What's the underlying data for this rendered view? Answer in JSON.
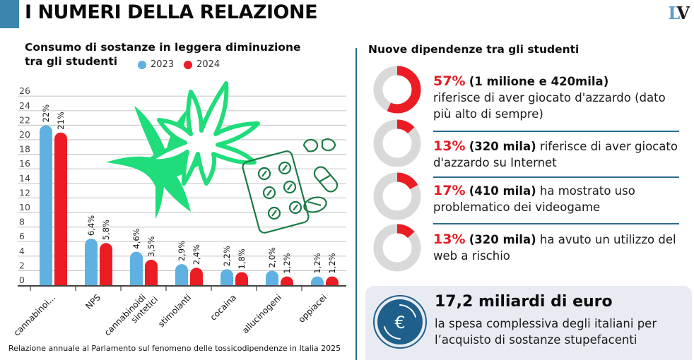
{
  "header": {
    "title": "I NUMERI DELLA RELAZIONE",
    "logo_l": "L",
    "logo_v": "V",
    "accent_color": "#3a84ae"
  },
  "chart_data": {
    "type": "bar",
    "title": "Consumo di sostanze in leggera diminuzione tra gli studenti",
    "xlabel": "",
    "ylabel": "",
    "ylim": [
      0,
      26
    ],
    "yticks": [
      0,
      2,
      4,
      6,
      8,
      10,
      12,
      14,
      16,
      18,
      20,
      22,
      24,
      26
    ],
    "grid": true,
    "legend_position": "top",
    "categories": [
      "cannabinoi...",
      "NPS",
      "cannabinoidi sintetici",
      "stimolanti",
      "cocaina",
      "allucinogeni",
      "oppiacei"
    ],
    "series": [
      {
        "name": "2023",
        "color": "#5eb1e1",
        "values": [
          22,
          6.4,
          4.6,
          2.9,
          2.2,
          2.0,
          1.2
        ],
        "labels": [
          "22%",
          "6,4%",
          "4,6%",
          "2,9%",
          "2,2%",
          "2,0%",
          "1,2%"
        ]
      },
      {
        "name": "2024",
        "color": "#ec1c24",
        "values": [
          21,
          5.8,
          3.5,
          2.4,
          1.8,
          1.2,
          1.2
        ],
        "labels": [
          "21%",
          "5,8%",
          "3,5%",
          "2,4%",
          "1,8%",
          "1,2%",
          "1,2%"
        ]
      }
    ]
  },
  "source": "Relazione annuale al Parlamento sul fenomeno delle tossicodipendenze in Italia 2025",
  "addictions": {
    "title": "Nuove dipendenze tra gli studenti",
    "items": [
      {
        "pct": "57%",
        "value": 57,
        "abs": "(1 milione e 420mila)",
        "text": "riferisce di aver giocato d'azzardo (dato più alto di sempre)"
      },
      {
        "pct": "13%",
        "value": 13,
        "abs": "(320 mila)",
        "text": "riferisce di aver giocato d'azzardo su Internet"
      },
      {
        "pct": "17%",
        "value": 17,
        "abs": "(410 mila)",
        "text": "ha mostrato uso problematico dei videogame"
      },
      {
        "pct": "13%",
        "value": 13,
        "abs": "(320 mila)",
        "text": "ha avuto un utilizzo del web a rischio"
      }
    ],
    "donut_fill_color": "#ec1c24",
    "donut_track_color": "#d9d9d9"
  },
  "spending": {
    "amount": "17,2 miliardi di euro",
    "description": "la spesa complessiva degli italiani per l’acquisto di sostanze stupefacenti",
    "icon": "euro-coin-icon",
    "icon_color": "#1f5f8b"
  },
  "illustrations": [
    "cannabis-leaf-icon",
    "pills-blister-icon"
  ]
}
